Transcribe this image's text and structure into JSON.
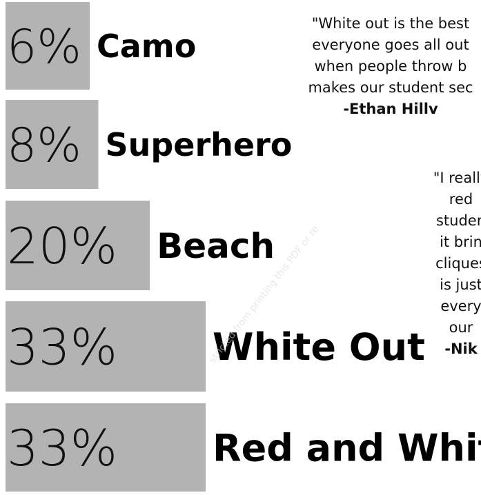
{
  "chart_data": {
    "type": "bar",
    "orientation": "horizontal",
    "categories": [
      "Camo",
      "Superhero",
      "Beach",
      "White Out",
      "Red and White"
    ],
    "values": [
      6,
      8,
      20,
      33,
      33
    ],
    "value_labels": [
      "6%",
      "8%",
      "20%",
      "33%",
      "33%"
    ],
    "xlim": [
      0,
      33
    ],
    "bar_color": "#b3b3b3"
  },
  "quotes": [
    {
      "lines": [
        "\"White out is the best",
        "everyone goes all out",
        "when people throw b",
        "makes our student sec"
      ],
      "author": "-Ethan Hillv"
    },
    {
      "lines": [
        "\"I really",
        "red",
        "studen",
        "it brin",
        "cliques",
        "is just",
        "every",
        "our"
      ],
      "author": "-Nik"
    }
  ],
  "watermark": "stricted from printing this PDF or re"
}
